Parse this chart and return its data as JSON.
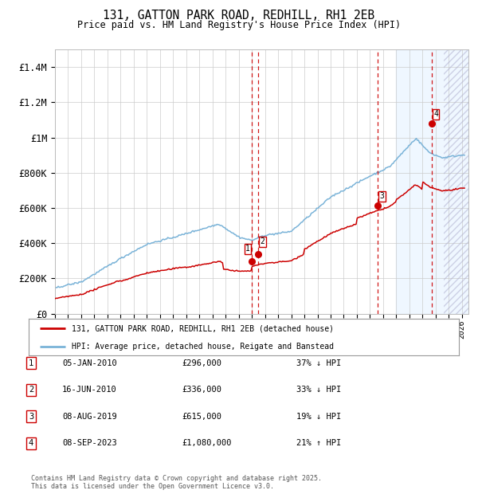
{
  "title": "131, GATTON PARK ROAD, REDHILL, RH1 2EB",
  "subtitle": "Price paid vs. HM Land Registry's House Price Index (HPI)",
  "ylim": [
    0,
    1500000
  ],
  "xlim_start": 1995.0,
  "xlim_end": 2026.5,
  "background_color": "#ffffff",
  "plot_bg_color": "#ffffff",
  "grid_color": "#cccccc",
  "hpi_line_color": "#7ab3d8",
  "price_line_color": "#cc0000",
  "shade_color": "#ddeeff",
  "sale_dot_color": "#cc0000",
  "vline_color": "#cc0000",
  "sale_points": [
    {
      "date_year": 2010.01,
      "price": 296000,
      "label": "1"
    },
    {
      "date_year": 2010.46,
      "price": 336000,
      "label": "2"
    },
    {
      "date_year": 2019.59,
      "price": 615000,
      "label": "3"
    },
    {
      "date_year": 2023.68,
      "price": 1080000,
      "label": "4"
    }
  ],
  "vline_dates": [
    2010.01,
    2010.46,
    2019.59,
    2023.68
  ],
  "shade_start": 2021.0,
  "shade_end": 2026.5,
  "hatch_start": 2024.6,
  "hatch_end": 2026.5,
  "legend_entries": [
    "131, GATTON PARK ROAD, REDHILL, RH1 2EB (detached house)",
    "HPI: Average price, detached house, Reigate and Banstead"
  ],
  "table_rows": [
    {
      "num": "1",
      "date": "05-JAN-2010",
      "price": "£296,000",
      "pct": "37% ↓ HPI"
    },
    {
      "num": "2",
      "date": "16-JUN-2010",
      "price": "£336,000",
      "pct": "33% ↓ HPI"
    },
    {
      "num": "3",
      "date": "08-AUG-2019",
      "price": "£615,000",
      "pct": "19% ↓ HPI"
    },
    {
      "num": "4",
      "date": "08-SEP-2023",
      "price": "£1,080,000",
      "pct": "21% ↑ HPI"
    }
  ],
  "footnote": "Contains HM Land Registry data © Crown copyright and database right 2025.\nThis data is licensed under the Open Government Licence v3.0.",
  "ytick_labels": [
    "£0",
    "£200K",
    "£400K",
    "£600K",
    "£800K",
    "£1M",
    "£1.2M",
    "£1.4M"
  ],
  "ytick_values": [
    0,
    200000,
    400000,
    600000,
    800000,
    1000000,
    1200000,
    1400000
  ]
}
